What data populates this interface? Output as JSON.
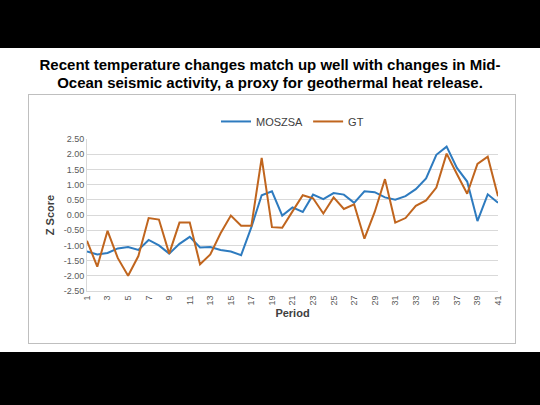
{
  "chart_data": {
    "type": "line",
    "title": "Recent temperature changes match up well with changes in Mid-Ocean seismic activity, a proxy for geothermal heat release.",
    "x_label": "Period",
    "y_label": "Z Score",
    "x": [
      1,
      2,
      3,
      4,
      5,
      6,
      7,
      8,
      9,
      10,
      11,
      12,
      13,
      14,
      15,
      16,
      17,
      18,
      19,
      20,
      21,
      22,
      23,
      24,
      25,
      26,
      27,
      28,
      29,
      30,
      31,
      32,
      33,
      34,
      35,
      36,
      37,
      38,
      39,
      40,
      41
    ],
    "series": [
      {
        "name": "MOSZSA",
        "color": "#2E7BBF",
        "values": [
          -1.2,
          -1.3,
          -1.25,
          -1.1,
          -1.05,
          -1.15,
          -0.82,
          -1.0,
          -1.27,
          -0.95,
          -0.72,
          -1.07,
          -1.05,
          -1.15,
          -1.2,
          -1.32,
          -0.4,
          0.65,
          0.78,
          -0.02,
          0.25,
          0.1,
          0.67,
          0.52,
          0.72,
          0.67,
          0.4,
          0.78,
          0.75,
          0.58,
          0.5,
          0.62,
          0.85,
          1.2,
          1.98,
          2.25,
          1.55,
          1.1,
          -0.2,
          0.68,
          0.4
        ]
      },
      {
        "name": "GT",
        "color": "#C0651E",
        "values": [
          -0.85,
          -1.7,
          -0.52,
          -1.42,
          -2.0,
          -1.35,
          -0.1,
          -0.15,
          -1.27,
          -0.25,
          -0.25,
          -1.62,
          -1.3,
          -0.6,
          -0.02,
          -0.35,
          -0.35,
          1.88,
          -0.4,
          -0.42,
          0.12,
          0.65,
          0.55,
          0.05,
          0.58,
          0.2,
          0.35,
          -0.78,
          0.1,
          1.18,
          -0.25,
          -0.1,
          0.3,
          0.48,
          0.9,
          2.02,
          1.35,
          0.7,
          1.68,
          1.92,
          0.62
        ]
      }
    ],
    "xlim": [
      1,
      41
    ],
    "xticks": [
      1,
      3,
      5,
      7,
      9,
      11,
      13,
      15,
      17,
      19,
      21,
      23,
      25,
      27,
      29,
      31,
      33,
      35,
      37,
      39,
      41
    ],
    "ylim": [
      -2.5,
      2.5
    ],
    "yticks": [
      {
        "value": -2.5,
        "label": "-2.50"
      },
      {
        "value": -2.0,
        "label": "-2.00"
      },
      {
        "value": -1.5,
        "label": "-1.50"
      },
      {
        "value": -1.0,
        "label": "-1.00"
      },
      {
        "value": -0.5,
        "label": "-0.50"
      },
      {
        "value": 0,
        "label": "0.00"
      },
      {
        "value": 0.5,
        "label": "0.50"
      },
      {
        "value": 1.0,
        "label": "1.00"
      },
      {
        "value": 1.5,
        "label": "1.50"
      },
      {
        "value": 2.0,
        "label": "2.00"
      },
      {
        "value": 2.5,
        "label": "2.50"
      }
    ],
    "grid": true,
    "legend": "top"
  }
}
